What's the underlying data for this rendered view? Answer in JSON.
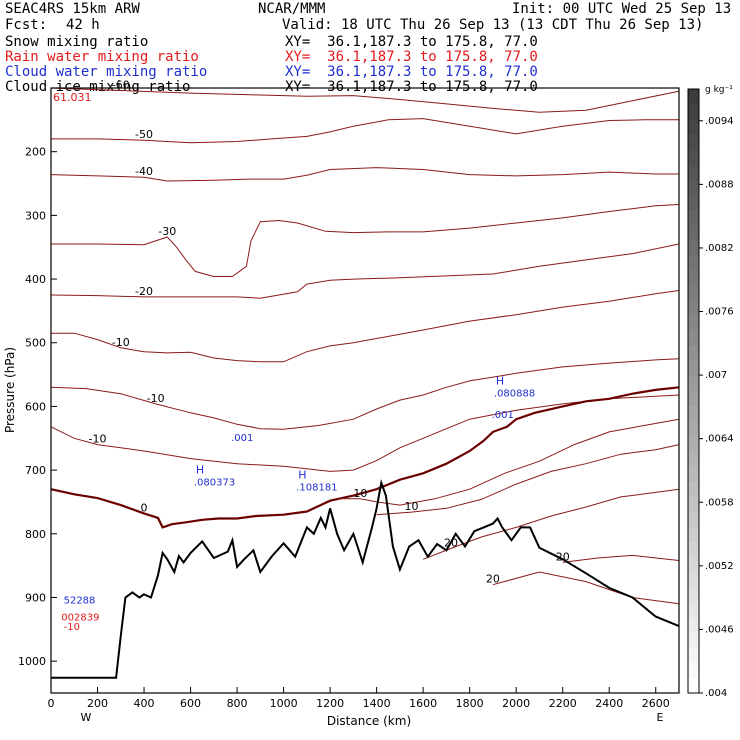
{
  "header": {
    "model": "SEAC4RS 15km ARW",
    "center": "NCAR/MMM",
    "init": "Init: 00 UTC Wed 25 Sep 13",
    "fcst_label": "Fcst:",
    "fcst_value": "42 h",
    "valid": "Valid: 18 UTC Thu 26 Sep 13 (13 CDT Thu 26 Sep 13)",
    "fields": [
      {
        "name": "Snow mixing ratio",
        "xy": "XY=  36.1,187.3 to 175.8, 77.0",
        "color": "#000000"
      },
      {
        "name": "Rain water mixing ratio",
        "xy": "XY=  36.1,187.3 to 175.8, 77.0",
        "color": "#e41a1c"
      },
      {
        "name": "Cloud water mixing ratio",
        "xy": "XY=  36.1,187.3 to 175.8, 77.0",
        "color": "#1f2fd0"
      },
      {
        "name": "Cloud ice mixing ratio",
        "xy": "XY=  36.1,187.3 to 175.8, 77.0",
        "color": "#000000"
      }
    ]
  },
  "chart_data": {
    "type": "contour",
    "xlabel": "Distance (km)",
    "ylabel": "Pressure (hPa)",
    "xlim": [
      0,
      2700
    ],
    "ylim": [
      1050,
      100
    ],
    "x_ticks": [
      0,
      200,
      400,
      600,
      800,
      1000,
      1200,
      1400,
      1600,
      1800,
      2000,
      2200,
      2400,
      2600
    ],
    "y_ticks": [
      200,
      300,
      400,
      500,
      600,
      700,
      800,
      900,
      1000
    ],
    "x_end_labels": [
      "W",
      "E"
    ],
    "corner_value": "61.031",
    "colorbar": {
      "unit": "g kg⁻¹",
      "labels": [
        ".0094",
        ".0088",
        ".0082",
        ".0076",
        ".007",
        ".0064",
        ".0058",
        ".0052",
        ".0046",
        ".004"
      ],
      "min": 0.004,
      "max": 0.0097
    },
    "temperature_contours": [
      {
        "level": -60,
        "points": [
          [
            0,
            100
          ],
          [
            300,
            104
          ],
          [
            600,
            108
          ],
          [
            900,
            111
          ],
          [
            1100,
            113
          ],
          [
            1300,
            112
          ],
          [
            1500,
            118
          ],
          [
            1700,
            125
          ],
          [
            1900,
            132
          ],
          [
            2100,
            138
          ],
          [
            2300,
            135
          ],
          [
            2500,
            120
          ],
          [
            2700,
            105
          ]
        ]
      },
      {
        "level": -50,
        "points": [
          [
            0,
            180
          ],
          [
            200,
            180
          ],
          [
            400,
            182
          ],
          [
            600,
            186
          ],
          [
            800,
            184
          ],
          [
            950,
            180
          ],
          [
            1100,
            176
          ],
          [
            1200,
            169
          ],
          [
            1300,
            160
          ],
          [
            1450,
            150
          ],
          [
            1600,
            148
          ],
          [
            1800,
            160
          ],
          [
            2000,
            172
          ],
          [
            2200,
            160
          ],
          [
            2400,
            151
          ],
          [
            2550,
            150
          ],
          [
            2700,
            150
          ]
        ]
      },
      {
        "level": -40,
        "points": [
          [
            0,
            236
          ],
          [
            200,
            238
          ],
          [
            400,
            240
          ],
          [
            500,
            246
          ],
          [
            700,
            245
          ],
          [
            850,
            243
          ],
          [
            1000,
            243
          ],
          [
            1100,
            237
          ],
          [
            1200,
            228
          ],
          [
            1400,
            225
          ],
          [
            1600,
            228
          ],
          [
            1800,
            236
          ],
          [
            2000,
            238
          ],
          [
            2200,
            236
          ],
          [
            2400,
            232
          ],
          [
            2600,
            235
          ],
          [
            2700,
            235
          ]
        ]
      },
      {
        "level": -30,
        "points": [
          [
            0,
            345
          ],
          [
            200,
            345
          ],
          [
            400,
            346
          ],
          [
            500,
            334
          ],
          [
            540,
            350
          ],
          [
            580,
            370
          ],
          [
            620,
            388
          ],
          [
            700,
            396
          ],
          [
            780,
            396
          ],
          [
            840,
            380
          ],
          [
            860,
            340
          ],
          [
            900,
            310
          ],
          [
            980,
            308
          ],
          [
            1060,
            312
          ],
          [
            1180,
            325
          ],
          [
            1300,
            327
          ],
          [
            1450,
            326
          ],
          [
            1600,
            326
          ],
          [
            1800,
            320
          ],
          [
            2000,
            312
          ],
          [
            2200,
            304
          ],
          [
            2400,
            294
          ],
          [
            2600,
            285
          ],
          [
            2700,
            283
          ]
        ]
      },
      {
        "level": -20,
        "points": [
          [
            0,
            425
          ],
          [
            200,
            426
          ],
          [
            400,
            428
          ],
          [
            600,
            428
          ],
          [
            800,
            428
          ],
          [
            900,
            430
          ],
          [
            980,
            425
          ],
          [
            1060,
            420
          ],
          [
            1100,
            408
          ],
          [
            1200,
            402
          ],
          [
            1300,
            400
          ],
          [
            1500,
            398
          ],
          [
            1700,
            395
          ],
          [
            1900,
            392
          ],
          [
            2100,
            380
          ],
          [
            2300,
            370
          ],
          [
            2500,
            360
          ],
          [
            2700,
            345
          ]
        ]
      },
      {
        "level": -10,
        "points": [
          [
            0,
            485
          ],
          [
            100,
            485
          ],
          [
            200,
            495
          ],
          [
            300,
            508
          ],
          [
            400,
            514
          ],
          [
            500,
            516
          ],
          [
            600,
            515
          ],
          [
            700,
            524
          ],
          [
            800,
            528
          ],
          [
            900,
            530
          ],
          [
            1000,
            530
          ],
          [
            1100,
            514
          ],
          [
            1200,
            505
          ],
          [
            1300,
            500
          ],
          [
            1450,
            490
          ],
          [
            1600,
            480
          ],
          [
            1800,
            466
          ],
          [
            2000,
            456
          ],
          [
            2200,
            444
          ],
          [
            2400,
            435
          ],
          [
            2600,
            423
          ],
          [
            2700,
            418
          ]
        ]
      },
      {
        "level": -10,
        "points": [
          [
            0,
            570
          ],
          [
            150,
            572
          ],
          [
            300,
            580
          ],
          [
            450,
            596
          ],
          [
            600,
            610
          ],
          [
            700,
            618
          ],
          [
            800,
            628
          ],
          [
            900,
            635
          ],
          [
            1000,
            636
          ],
          [
            1150,
            630
          ],
          [
            1300,
            620
          ],
          [
            1400,
            604
          ],
          [
            1500,
            590
          ],
          [
            1600,
            582
          ],
          [
            1700,
            570
          ],
          [
            1800,
            560
          ],
          [
            2000,
            548
          ],
          [
            2200,
            538
          ],
          [
            2400,
            532
          ],
          [
            2600,
            527
          ],
          [
            2700,
            525
          ]
        ]
      },
      {
        "level": -10,
        "points": [
          [
            0,
            632
          ],
          [
            100,
            650
          ],
          [
            200,
            660
          ],
          [
            400,
            670
          ],
          [
            600,
            682
          ],
          [
            800,
            690
          ],
          [
            1000,
            694
          ],
          [
            1200,
            702
          ],
          [
            1300,
            700
          ],
          [
            1400,
            685
          ],
          [
            1500,
            665
          ],
          [
            1600,
            650
          ],
          [
            1700,
            635
          ],
          [
            1800,
            620
          ],
          [
            2000,
            606
          ],
          [
            2200,
            596
          ],
          [
            2400,
            588
          ],
          [
            2600,
            584
          ],
          [
            2700,
            582
          ]
        ]
      },
      {
        "level": 0,
        "points": [
          [
            0,
            730
          ],
          [
            100,
            738
          ],
          [
            200,
            744
          ],
          [
            300,
            755
          ],
          [
            400,
            768
          ],
          [
            460,
            775
          ],
          [
            480,
            790
          ],
          [
            520,
            785
          ],
          [
            580,
            782
          ],
          [
            650,
            778
          ],
          [
            720,
            776
          ],
          [
            800,
            776
          ],
          [
            880,
            772
          ],
          [
            1000,
            770
          ],
          [
            1100,
            765
          ],
          [
            1200,
            748
          ],
          [
            1300,
            740
          ],
          [
            1400,
            730
          ],
          [
            1500,
            715
          ],
          [
            1600,
            705
          ],
          [
            1700,
            690
          ],
          [
            1800,
            670
          ],
          [
            1860,
            654
          ],
          [
            1900,
            640
          ],
          [
            1960,
            632
          ],
          [
            2000,
            620
          ],
          [
            2080,
            610
          ],
          [
            2200,
            600
          ],
          [
            2300,
            592
          ],
          [
            2400,
            588
          ],
          [
            2500,
            580
          ],
          [
            2600,
            574
          ],
          [
            2700,
            570
          ]
        ]
      },
      {
        "level": 10,
        "points": [
          [
            1230,
            745
          ],
          [
            1330,
            745
          ],
          [
            1400,
            750
          ],
          [
            1500,
            755
          ],
          [
            1650,
            745
          ],
          [
            1800,
            730
          ],
          [
            1950,
            705
          ],
          [
            2100,
            686
          ],
          [
            2250,
            660
          ],
          [
            2400,
            640
          ],
          [
            2550,
            630
          ],
          [
            2700,
            620
          ]
        ]
      },
      {
        "level": 10,
        "points": [
          [
            1400,
            770
          ],
          [
            1550,
            766
          ],
          [
            1700,
            760
          ],
          [
            1850,
            746
          ],
          [
            2000,
            722
          ],
          [
            2150,
            702
          ],
          [
            2300,
            690
          ],
          [
            2450,
            675
          ],
          [
            2600,
            668
          ],
          [
            2700,
            660
          ]
        ]
      },
      {
        "level": 20,
        "points": [
          [
            1600,
            840
          ],
          [
            1720,
            823
          ],
          [
            1850,
            805
          ],
          [
            2000,
            790
          ],
          [
            2150,
            772
          ],
          [
            2300,
            758
          ],
          [
            2450,
            742
          ],
          [
            2600,
            735
          ],
          [
            2700,
            730
          ]
        ]
      },
      {
        "level": 20,
        "points": [
          [
            2200,
            845
          ],
          [
            2350,
            838
          ],
          [
            2500,
            834
          ],
          [
            2650,
            840
          ],
          [
            2700,
            842
          ]
        ]
      },
      {
        "level": 20,
        "points": [
          [
            1900,
            880
          ],
          [
            2100,
            860
          ],
          [
            2300,
            875
          ],
          [
            2500,
            900
          ],
          [
            2700,
            910
          ]
        ]
      }
    ],
    "terrain": [
      [
        0,
        1026
      ],
      [
        280,
        1026
      ],
      [
        300,
        960
      ],
      [
        320,
        900
      ],
      [
        350,
        892
      ],
      [
        380,
        900
      ],
      [
        400,
        895
      ],
      [
        430,
        900
      ],
      [
        460,
        865
      ],
      [
        480,
        830
      ],
      [
        500,
        840
      ],
      [
        530,
        860
      ],
      [
        550,
        835
      ],
      [
        570,
        845
      ],
      [
        600,
        830
      ],
      [
        650,
        812
      ],
      [
        700,
        838
      ],
      [
        760,
        828
      ],
      [
        780,
        810
      ],
      [
        800,
        852
      ],
      [
        830,
        840
      ],
      [
        870,
        826
      ],
      [
        900,
        860
      ],
      [
        950,
        835
      ],
      [
        1000,
        815
      ],
      [
        1050,
        836
      ],
      [
        1100,
        790
      ],
      [
        1130,
        800
      ],
      [
        1160,
        775
      ],
      [
        1180,
        790
      ],
      [
        1200,
        760
      ],
      [
        1230,
        800
      ],
      [
        1260,
        826
      ],
      [
        1300,
        800
      ],
      [
        1340,
        845
      ],
      [
        1380,
        790
      ],
      [
        1400,
        760
      ],
      [
        1420,
        720
      ],
      [
        1440,
        740
      ],
      [
        1470,
        820
      ],
      [
        1500,
        856
      ],
      [
        1540,
        820
      ],
      [
        1580,
        810
      ],
      [
        1620,
        836
      ],
      [
        1660,
        816
      ],
      [
        1700,
        826
      ],
      [
        1740,
        800
      ],
      [
        1780,
        820
      ],
      [
        1820,
        796
      ],
      [
        1860,
        790
      ],
      [
        1900,
        784
      ],
      [
        1920,
        776
      ],
      [
        1940,
        790
      ],
      [
        1980,
        810
      ],
      [
        2020,
        790
      ],
      [
        2060,
        790
      ],
      [
        2100,
        822
      ],
      [
        2200,
        840
      ],
      [
        2300,
        862
      ],
      [
        2400,
        885
      ],
      [
        2500,
        900
      ],
      [
        2600,
        930
      ],
      [
        2700,
        945
      ]
    ],
    "features": [
      {
        "label": "H",
        "value": ".080373",
        "x": 640,
        "pressure": 718
      },
      {
        "label": "H",
        "value": ".108181",
        "x": 1080,
        "pressure": 726
      },
      {
        "label": "H",
        "value": ".080888",
        "x": 1930,
        "pressure": 578
      },
      {
        "label": "",
        "value": ".001",
        "x": 800,
        "pressure": 648
      },
      {
        "label": "",
        "value": ".001",
        "x": 1920,
        "pressure": 612
      },
      {
        "label": "",
        "value": "52288",
        "x": 80,
        "pressure": 903
      },
      {
        "label": "",
        "value": "002839",
        "x": 70,
        "pressure": 930
      },
      {
        "label": "",
        "value": "-10",
        "x": 80,
        "pressure": 945
      }
    ]
  }
}
